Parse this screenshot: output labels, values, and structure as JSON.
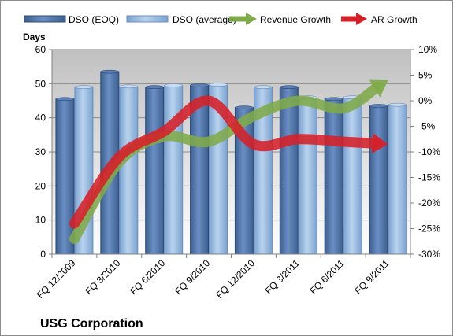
{
  "chart_data": {
    "type": "bar",
    "title": "USG Corporation",
    "ylabel_left": "Days",
    "ylim_left": [
      0,
      60
    ],
    "yticks_left": [
      "0",
      "10",
      "20",
      "30",
      "40",
      "50",
      "60"
    ],
    "ylim_right": [
      -30,
      10
    ],
    "yticks_right": [
      "-30%",
      "-25%",
      "-20%",
      "-15%",
      "-10%",
      "-5%",
      "0%",
      "5%",
      "10%"
    ],
    "categories": [
      "FQ 12/2009",
      "FQ 3/2010",
      "FQ 6/2010",
      "FQ 9/2010",
      "FQ 12/2010",
      "FQ 3/2011",
      "FQ 6/2011",
      "FQ 9/2011"
    ],
    "legend_position": "top",
    "grid": true,
    "series": [
      {
        "name": "DSO (EOQ)",
        "kind": "bar",
        "axis": "left",
        "color": "#4a6fa5",
        "values": [
          45.5,
          53.5,
          49,
          49.5,
          43,
          49,
          45.5,
          43.5
        ]
      },
      {
        "name": "DSO (average)",
        "kind": "bar",
        "axis": "left",
        "color": "#8fb4dc",
        "values": [
          49,
          49.2,
          49.5,
          49.7,
          49,
          46,
          46,
          43.8
        ]
      },
      {
        "name": "Revenue Growth",
        "kind": "line-arrow",
        "axis": "right",
        "color": "#7faa4a",
        "values": [
          -27,
          -12,
          -7,
          -8,
          -3,
          0,
          -1.5,
          4
        ]
      },
      {
        "name": "AR Growth",
        "kind": "line-arrow",
        "axis": "right",
        "color": "#d62028",
        "values": [
          -24,
          -11,
          -6,
          0,
          -8.5,
          -7.5,
          -8,
          -8.5
        ]
      }
    ]
  }
}
